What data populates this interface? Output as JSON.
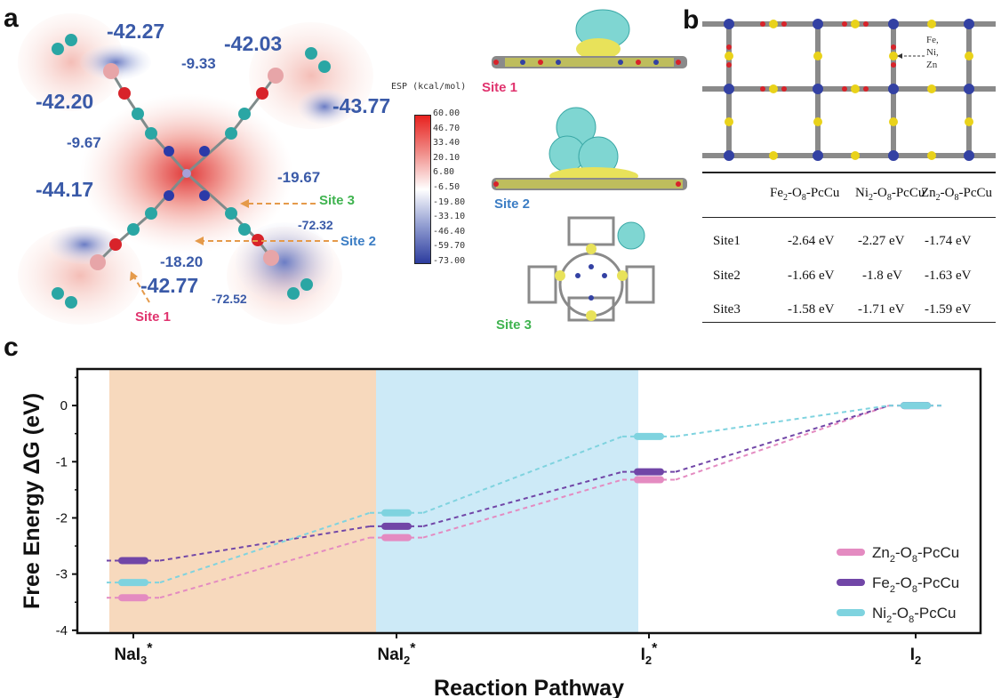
{
  "panel_a": {
    "letter": "a",
    "esp_values": [
      "-42.27",
      "-42.03",
      "-9.33",
      "-42.20",
      "-43.77",
      "-9.67",
      "-19.67",
      "-44.17",
      "-72.32",
      "-18.20",
      "-42.77",
      "-72.52"
    ],
    "site_labels": [
      "Site 3",
      "Site 2",
      "Site 1"
    ],
    "colorbar": {
      "title": "ESP (kcal/mol)",
      "ticks": [
        "60.00",
        "46.70",
        "33.40",
        "20.10",
        "6.80",
        "-6.50",
        "-19.80",
        "-33.10",
        "-46.40",
        "-59.70",
        "-73.00"
      ]
    },
    "charge_diff_labels": [
      "Site 1",
      "Site 2",
      "Site 3"
    ],
    "colors": {
      "site1": "#e0336e",
      "site2": "#3b7dc4",
      "site3": "#3fb34f",
      "esp_text": "#3a5aa8"
    }
  },
  "panel_b": {
    "letter": "b",
    "metal_label": [
      "Fe,",
      "Ni,",
      "Zn"
    ],
    "table": {
      "headers": [
        "Fe2-O8-PcCu",
        "Ni2-O8-PcCu",
        "Zn2-O8-PcCu"
      ],
      "rows": [
        {
          "site": "Site1",
          "values": [
            "-2.64 eV",
            "-2.27 eV",
            "-1.74 eV"
          ]
        },
        {
          "site": "Site2",
          "values": [
            "-1.66 eV",
            "-1.8 eV",
            "-1.63 eV"
          ]
        },
        {
          "site": "Site3",
          "values": [
            "-1.58 eV",
            "-1.71 eV",
            "-1.59 eV"
          ]
        }
      ]
    }
  },
  "panel_c": {
    "letter": "c"
  },
  "chart_data": {
    "type": "line",
    "xlabel": "Reaction Pathway",
    "ylabel": "Free Energy ΔG (eV)",
    "categories": [
      "NaI3*",
      "NaI2*",
      "I2*",
      "I2"
    ],
    "category_display": [
      {
        "base": "NaI",
        "sub": "3",
        "sup": "*"
      },
      {
        "base": "NaI",
        "sub": "2",
        "sup": "*"
      },
      {
        "base": "I",
        "sub": "2",
        "sup": "*"
      },
      {
        "base": "I",
        "sub": "2",
        "sup": ""
      }
    ],
    "ylim": [
      -4.05,
      0.65
    ],
    "yticks": [
      0,
      -1,
      -2,
      -3,
      -4
    ],
    "grid": false,
    "legend_position": "bottom-right",
    "shaded_regions": [
      {
        "from": 0,
        "to": 1,
        "color": "#f7d9bd"
      },
      {
        "from": 1,
        "to": 2,
        "color": "#cdeaf7"
      }
    ],
    "series": [
      {
        "name": "Zn2-O8-PcCu",
        "name_display": {
          "a": "Zn",
          "s1": "2",
          "b": "-O",
          "s2": "8",
          "c": "-PcCu"
        },
        "color": "#e48bc1",
        "values": [
          -3.42,
          -2.35,
          -1.32,
          0.0
        ]
      },
      {
        "name": "Fe2-O8-PcCu",
        "name_display": {
          "a": "Fe",
          "s1": "2",
          "b": "-O",
          "s2": "8",
          "c": "-PcCu"
        },
        "color": "#7146a7",
        "values": [
          -2.76,
          -2.15,
          -1.18,
          0.0
        ]
      },
      {
        "name": "Ni2-O8-PcCu",
        "name_display": {
          "a": "Ni",
          "s1": "2",
          "b": "-O",
          "s2": "8",
          "c": "-PcCu"
        },
        "color": "#7fd3df",
        "values": [
          -3.15,
          -1.91,
          -0.55,
          0.0
        ]
      }
    ]
  }
}
